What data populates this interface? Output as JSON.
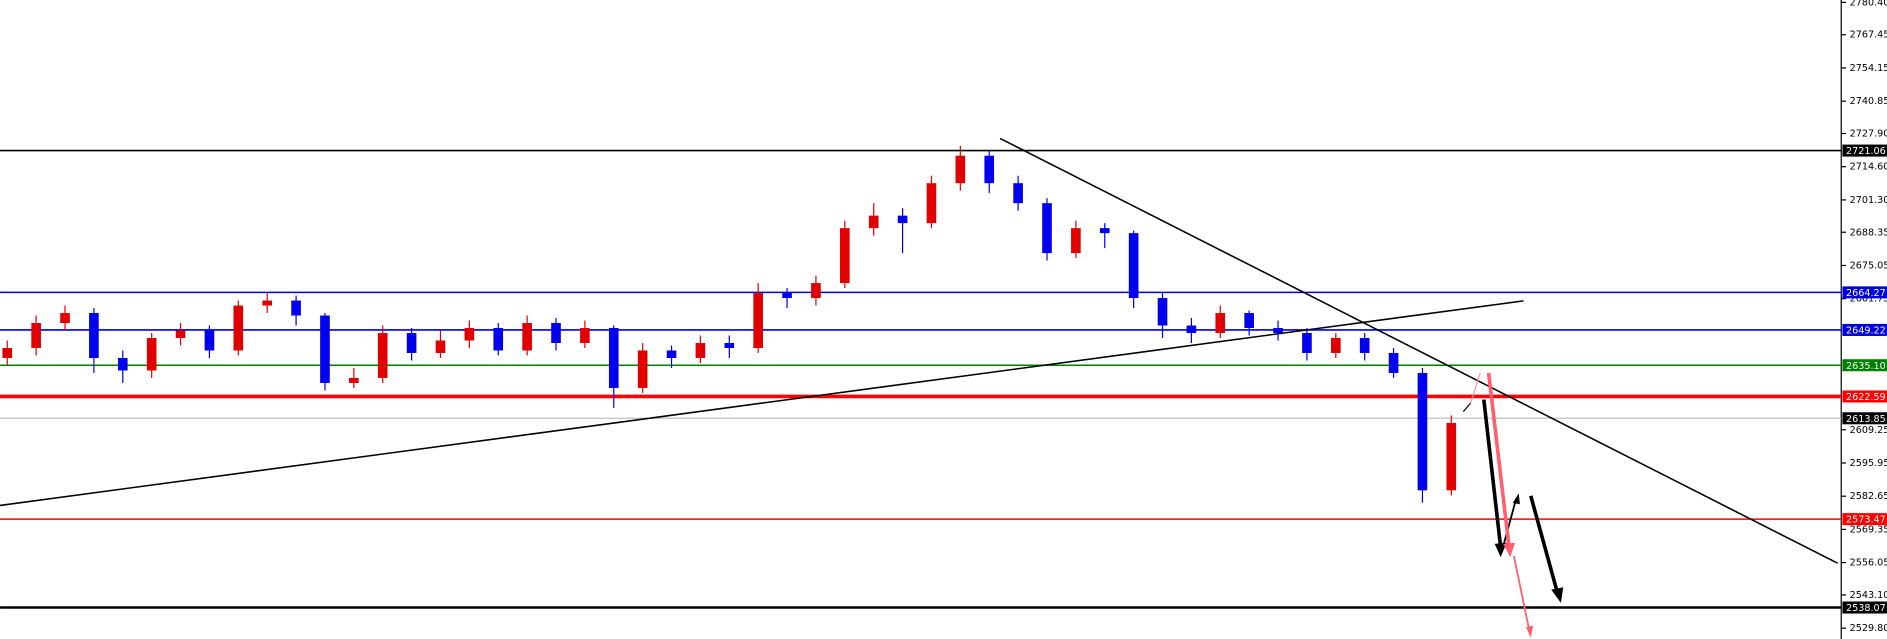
{
  "chart_data": {
    "type": "candlestick",
    "ylim": [
      2525.46,
      2781.36
    ],
    "yticks": [
      {
        "value": 2780.4,
        "label": "2780.40"
      },
      2767.45,
      2754.15,
      {
        "value": 2740.85,
        "label": "2740.85"
      },
      {
        "value": 2727.9,
        "label": "2727.90"
      },
      {
        "value": 2714.6,
        "label": "2714.60"
      },
      {
        "value": 2701.3,
        "label": "2701.30"
      },
      2688.35,
      2675.05,
      2661.75,
      2609.25,
      2595.95,
      2582.65,
      2569.35,
      2556.05,
      {
        "value": 2543.1,
        "label": "2543.10"
      },
      {
        "value": 2529.8,
        "label": "2529.80"
      }
    ],
    "up_color": "#e00000",
    "down_color": "#0000ee",
    "open": [
      2638,
      2642,
      2652,
      2656,
      2638,
      2633,
      2646,
      2649,
      2641,
      2659,
      2661,
      2655,
      2628,
      2630,
      2648,
      2640,
      2645,
      2650,
      2641,
      2652,
      2644,
      2650,
      2626,
      2641,
      2638,
      2644,
      2642,
      2664,
      2662,
      2668,
      2690,
      2695,
      2692,
      2708,
      2719,
      2708,
      2700,
      2680,
      2690,
      2688,
      2662,
      2651,
      2648,
      2656,
      2650,
      2648,
      2640,
      2646,
      2640,
      2632,
      2585
    ],
    "high": [
      2645,
      2655,
      2659,
      2658,
      2641,
      2648,
      2652,
      2651,
      2661,
      2664,
      2663,
      2656,
      2634,
      2651,
      2650,
      2649,
      2653,
      2652,
      2655,
      2654,
      2653,
      2651,
      2644,
      2643,
      2647,
      2647,
      2668,
      2666,
      2671,
      2693,
      2700,
      2698,
      2711,
      2723,
      2721,
      2711,
      2702,
      2693,
      2692,
      2689,
      2664,
      2654,
      2659,
      2657,
      2653,
      2650,
      2648,
      2648,
      2642,
      2634,
      2615
    ],
    "low": [
      2635,
      2639,
      2649,
      2632,
      2628,
      2630,
      2643,
      2638,
      2639,
      2656,
      2651,
      2625,
      2626,
      2628,
      2637,
      2638,
      2642,
      2639,
      2639,
      2641,
      2642,
      2618,
      2624,
      2634,
      2636,
      2638,
      2640,
      2658,
      2659,
      2666,
      2687,
      2680,
      2690,
      2705,
      2704,
      2697,
      2677,
      2678,
      2682,
      2658,
      2646,
      2644,
      2646,
      2647,
      2645,
      2637,
      2638,
      2637,
      2630,
      2580,
      2583
    ],
    "close": [
      2642,
      2652,
      2656,
      2638,
      2633,
      2646,
      2649,
      2641,
      2659,
      2661,
      2655,
      2628,
      2630,
      2648,
      2640,
      2645,
      2650,
      2641,
      2652,
      2644,
      2650,
      2626,
      2641,
      2638,
      2644,
      2642,
      2664,
      2662,
      2668,
      2690,
      2695,
      2692,
      2708,
      2719,
      2708,
      2700,
      2680,
      2690,
      2688,
      2662,
      2651,
      2648,
      2656,
      2650,
      2648,
      2640,
      2646,
      2640,
      2632,
      2585,
      2612
    ],
    "levels": [
      {
        "value": 2721.06,
        "label": "2721.06",
        "color": "#000000"
      },
      {
        "value": 2664.27,
        "label": "2664.27",
        "color": "#0000dd"
      },
      {
        "value": 2649.22,
        "label": "2649.22",
        "color": "#0000dd"
      },
      {
        "value": 2635.1,
        "label": "2635.10",
        "color": "#008000"
      },
      {
        "value": 2622.59,
        "label": "2622.59",
        "color": "#ff0000"
      },
      {
        "value": 2613.85,
        "label": "2613.85",
        "color": "#c0c0c0"
      },
      {
        "value": 2573.47,
        "label": "2573.47",
        "color": "#ff0000"
      },
      {
        "value": 2538.07,
        "label": "2538.07",
        "color": "#000000"
      }
    ]
  }
}
